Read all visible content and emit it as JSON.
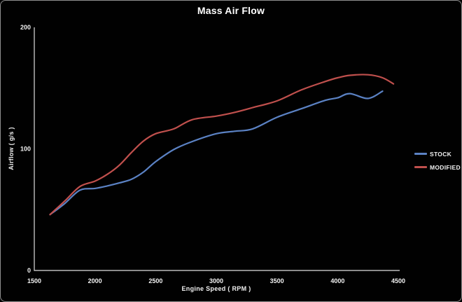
{
  "window": {
    "background": "#010101",
    "border_color": "#8f8f8f",
    "text_color": "#f2f2f2",
    "axis_color": "#e0e0e0"
  },
  "chart_data": {
    "type": "line",
    "title": "Mass Air Flow",
    "xlabel": "Engine Speed ( RPM )",
    "ylabel": "Airflow ( g/s )",
    "xlim": [
      1500,
      4500
    ],
    "ylim": [
      0,
      200
    ],
    "xticks": [
      1500,
      2000,
      2500,
      3000,
      3500,
      4000,
      4500
    ],
    "yticks": [
      0,
      100,
      200
    ],
    "grid": false,
    "plot_background": "#000000",
    "legend_position": "right",
    "x": [
      1630,
      1750,
      1875,
      2000,
      2100,
      2200,
      2300,
      2400,
      2500,
      2650,
      2800,
      3000,
      3150,
      3300,
      3500,
      3700,
      3900,
      4000,
      4100,
      4250,
      4370,
      4460
    ],
    "series": [
      {
        "name": "STOCK",
        "color": "#5b82c4",
        "values": [
          46,
          55,
          66,
          67.5,
          69.5,
          72,
          75,
          81,
          89.5,
          99.5,
          106,
          112.5,
          114.5,
          116.5,
          126,
          133,
          140,
          142,
          145.5,
          141.5,
          147.5,
          null
        ]
      },
      {
        "name": "MODIFIED",
        "color": "#c0504d",
        "values": [
          46,
          57,
          69,
          73.5,
          79,
          86.5,
          97,
          106.5,
          112.5,
          116.5,
          124,
          127,
          130,
          134,
          139.5,
          148.5,
          155.5,
          158.5,
          160.5,
          161,
          158.5,
          153.5
        ]
      }
    ]
  }
}
